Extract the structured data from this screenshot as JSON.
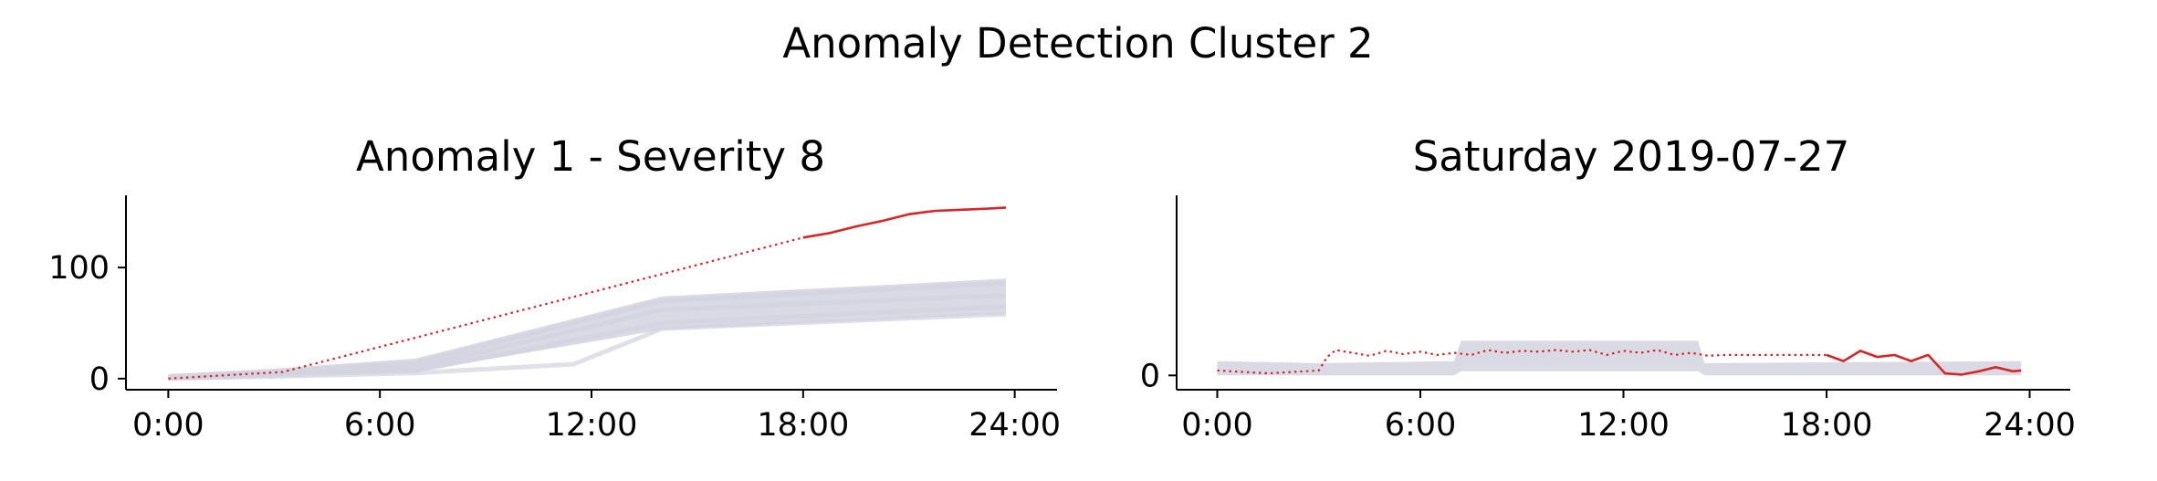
{
  "figure": {
    "title": "Anomaly Detection Cluster 2"
  },
  "colors": {
    "anomaly": "#d62728",
    "background_band": "#d3d3df",
    "axis": "#000000"
  },
  "chart_data": [
    {
      "type": "line",
      "title": "Anomaly 1 - Severity 8",
      "xlabel": "",
      "ylabel": "",
      "xticks": [
        "0:00",
        "6:00",
        "12:00",
        "18:00",
        "24:00"
      ],
      "xlim_hours": [
        -1.2,
        25.2
      ],
      "yticks": [
        0,
        100
      ],
      "ylim": [
        -10,
        165
      ],
      "grid": false,
      "legend": "none",
      "background_band": {
        "x_hours": [
          0,
          3,
          7,
          14,
          23.75
        ],
        "upper": [
          4,
          9,
          18,
          74,
          90
        ],
        "lower": [
          0,
          3,
          6,
          44,
          58
        ]
      },
      "background_lines": [
        {
          "x_hours": [
            0,
            3,
            7,
            14,
            23.75
          ],
          "values": [
            2,
            6,
            14,
            70,
            86
          ]
        },
        {
          "x_hours": [
            0,
            3,
            7,
            14,
            23.75
          ],
          "values": [
            1,
            4,
            10,
            62,
            75
          ]
        },
        {
          "x_hours": [
            0,
            3,
            7,
            14,
            23.75
          ],
          "values": [
            0,
            3,
            7,
            50,
            65
          ]
        },
        {
          "x_hours": [
            0,
            3,
            7,
            11.5,
            14,
            23.75
          ],
          "values": [
            0,
            2,
            5,
            13,
            45,
            58
          ]
        }
      ],
      "series": [
        {
          "style": "dotted",
          "x_hours": [
            0,
            3.25,
            18
          ],
          "values": [
            0,
            6,
            127
          ]
        },
        {
          "style": "solid",
          "x_hours": [
            18,
            18.75,
            19.5,
            20.25,
            21,
            21.75,
            22.5,
            23.25,
            23.75
          ],
          "values": [
            127,
            131,
            137,
            142,
            148,
            151,
            152,
            153,
            154
          ]
        }
      ]
    },
    {
      "type": "line",
      "title": "Saturday 2019-07-27",
      "xlabel": "",
      "ylabel": "",
      "xticks": [
        "0:00",
        "6:00",
        "12:00",
        "18:00",
        "24:00"
      ],
      "xlim_hours": [
        -1.2,
        25.2
      ],
      "yticks": [
        0
      ],
      "ylim": [
        -0.35,
        4.4
      ],
      "grid": false,
      "legend": "none",
      "background_band": {
        "x_hours": [
          0,
          3,
          7,
          7.2,
          14.2,
          14.4,
          23.75
        ],
        "upper": [
          0.35,
          0.3,
          0.35,
          0.85,
          0.85,
          0.3,
          0.35
        ],
        "lower": [
          0,
          0,
          0,
          0.1,
          0.1,
          0,
          0
        ]
      },
      "series": [
        {
          "style": "dotted",
          "x_hours": [
            0,
            1.5,
            3,
            3.25,
            3.5,
            4,
            4.5,
            5,
            5.5,
            6,
            6.5,
            7,
            7.5,
            8,
            8.5,
            9,
            9.5,
            10,
            10.5,
            11,
            11.5,
            12,
            12.5,
            13,
            13.5,
            14,
            14.5,
            15,
            15.5,
            16,
            16.5,
            17,
            17.5,
            18
          ],
          "values": [
            0.12,
            0.05,
            0.12,
            0.45,
            0.62,
            0.55,
            0.48,
            0.6,
            0.52,
            0.58,
            0.5,
            0.55,
            0.5,
            0.62,
            0.55,
            0.6,
            0.58,
            0.62,
            0.58,
            0.62,
            0.5,
            0.6,
            0.55,
            0.62,
            0.5,
            0.55,
            0.48,
            0.5,
            0.5,
            0.5,
            0.5,
            0.5,
            0.5,
            0.5
          ]
        },
        {
          "style": "solid",
          "x_hours": [
            18,
            18.5,
            19,
            19.5,
            20,
            20.5,
            21,
            21.5,
            22,
            22.5,
            23,
            23.5,
            23.75
          ],
          "values": [
            0.5,
            0.35,
            0.6,
            0.45,
            0.5,
            0.35,
            0.5,
            0.05,
            0.02,
            0.1,
            0.2,
            0.1,
            0.12
          ]
        }
      ]
    }
  ]
}
